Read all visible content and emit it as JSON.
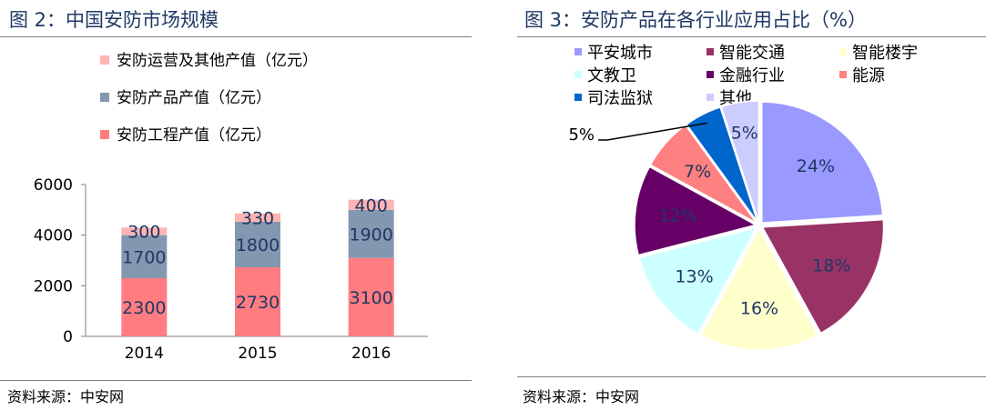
{
  "left": {
    "title": "图 2：中国安防市场规模",
    "source": "资料来源：中安网"
  },
  "right": {
    "title": "图 3：安防产品在各行业应用占比（%）",
    "source": "资料来源：中安网"
  },
  "chart_data": [
    {
      "type": "bar",
      "stacked": true,
      "categories": [
        "2014",
        "2015",
        "2016"
      ],
      "series": [
        {
          "name": "安防工程产值（亿元）",
          "values": [
            2300,
            2730,
            3100
          ],
          "color": "#ff7c80"
        },
        {
          "name": "安防产品产值（亿元）",
          "values": [
            1700,
            1800,
            1900
          ],
          "color": "#8497b0"
        },
        {
          "name": "安防运营及其他产值（亿元）",
          "values": [
            300,
            330,
            400
          ],
          "color": "#ffb3b3"
        }
      ],
      "legend_order": [
        "安防运营及其他产值（亿元）",
        "安防产品产值（亿元）",
        "安防工程产值（亿元）"
      ],
      "legend_position": "top-left",
      "yticks": [
        "0",
        "2000",
        "4000",
        "6000"
      ],
      "ylim": [
        0,
        6000
      ],
      "grid": false,
      "label_color": "#1f3864"
    },
    {
      "type": "pie",
      "slices": [
        {
          "name": "平安城市",
          "value": 24,
          "label": "24%",
          "color": "#9999ff"
        },
        {
          "name": "智能交通",
          "value": 18,
          "label": "18%",
          "color": "#993366"
        },
        {
          "name": "智能楼宇",
          "value": 16,
          "label": "16%",
          "color": "#ffffcc"
        },
        {
          "name": "文教卫",
          "value": 13,
          "label": "13%",
          "color": "#ccffff"
        },
        {
          "name": "金融行业",
          "value": 12,
          "label": "12%",
          "color": "#660066"
        },
        {
          "name": "能源",
          "value": 7,
          "label": "7%",
          "color": "#ff8080"
        },
        {
          "name": "司法监狱",
          "value": 5,
          "label": "5%",
          "color": "#0066cc"
        },
        {
          "name": "其他",
          "value": 5,
          "label": "5%",
          "color": "#ccccff"
        }
      ],
      "start": "12 o'clock",
      "direction": "clockwise",
      "legend_position": "top",
      "label_color": "#1f3864"
    }
  ]
}
